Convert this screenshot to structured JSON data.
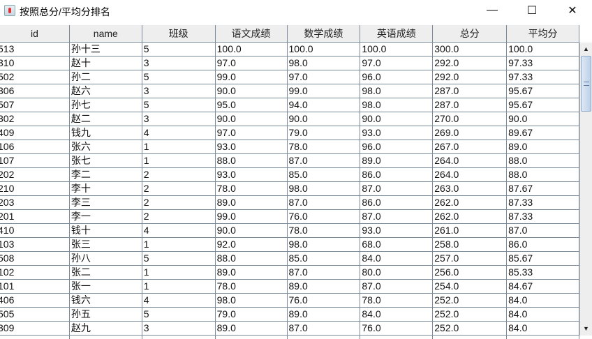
{
  "window": {
    "title": "按照总分/平均分排名",
    "minimize": "—",
    "maximize": "☐",
    "close": "✕"
  },
  "table": {
    "columns": [
      "id",
      "name",
      "班级",
      "语文成绩",
      "数学成绩",
      "英语成绩",
      "总分",
      "平均分"
    ],
    "rows": [
      [
        "513",
        "孙十三",
        "5",
        "100.0",
        "100.0",
        "100.0",
        "300.0",
        "100.0"
      ],
      [
        "310",
        "赵十",
        "3",
        "97.0",
        "98.0",
        "97.0",
        "292.0",
        "97.33"
      ],
      [
        "502",
        "孙二",
        "5",
        "99.0",
        "97.0",
        "96.0",
        "292.0",
        "97.33"
      ],
      [
        "306",
        "赵六",
        "3",
        "90.0",
        "99.0",
        "98.0",
        "287.0",
        "95.67"
      ],
      [
        "507",
        "孙七",
        "5",
        "95.0",
        "94.0",
        "98.0",
        "287.0",
        "95.67"
      ],
      [
        "302",
        "赵二",
        "3",
        "90.0",
        "90.0",
        "90.0",
        "270.0",
        "90.0"
      ],
      [
        "409",
        "钱九",
        "4",
        "97.0",
        "79.0",
        "93.0",
        "269.0",
        "89.67"
      ],
      [
        "106",
        "张六",
        "1",
        "93.0",
        "78.0",
        "96.0",
        "267.0",
        "89.0"
      ],
      [
        "107",
        "张七",
        "1",
        "88.0",
        "87.0",
        "89.0",
        "264.0",
        "88.0"
      ],
      [
        "202",
        "李二",
        "2",
        "93.0",
        "85.0",
        "86.0",
        "264.0",
        "88.0"
      ],
      [
        "210",
        "李十",
        "2",
        "78.0",
        "98.0",
        "87.0",
        "263.0",
        "87.67"
      ],
      [
        "203",
        "李三",
        "2",
        "89.0",
        "87.0",
        "86.0",
        "262.0",
        "87.33"
      ],
      [
        "201",
        "李一",
        "2",
        "99.0",
        "76.0",
        "87.0",
        "262.0",
        "87.33"
      ],
      [
        "410",
        "钱十",
        "4",
        "90.0",
        "78.0",
        "93.0",
        "261.0",
        "87.0"
      ],
      [
        "103",
        "张三",
        "1",
        "92.0",
        "98.0",
        "68.0",
        "258.0",
        "86.0"
      ],
      [
        "508",
        "孙八",
        "5",
        "88.0",
        "85.0",
        "84.0",
        "257.0",
        "85.67"
      ],
      [
        "102",
        "张二",
        "1",
        "89.0",
        "87.0",
        "80.0",
        "256.0",
        "85.33"
      ],
      [
        "101",
        "张一",
        "1",
        "78.0",
        "89.0",
        "87.0",
        "254.0",
        "84.67"
      ],
      [
        "406",
        "钱六",
        "4",
        "98.0",
        "76.0",
        "78.0",
        "252.0",
        "84.0"
      ],
      [
        "505",
        "孙五",
        "5",
        "79.0",
        "89.0",
        "84.0",
        "252.0",
        "84.0"
      ],
      [
        "309",
        "赵九",
        "3",
        "89.0",
        "87.0",
        "76.0",
        "252.0",
        "84.0"
      ]
    ]
  },
  "scrollbar": {
    "up": "▲",
    "down": "▼",
    "position": 0.0
  }
}
